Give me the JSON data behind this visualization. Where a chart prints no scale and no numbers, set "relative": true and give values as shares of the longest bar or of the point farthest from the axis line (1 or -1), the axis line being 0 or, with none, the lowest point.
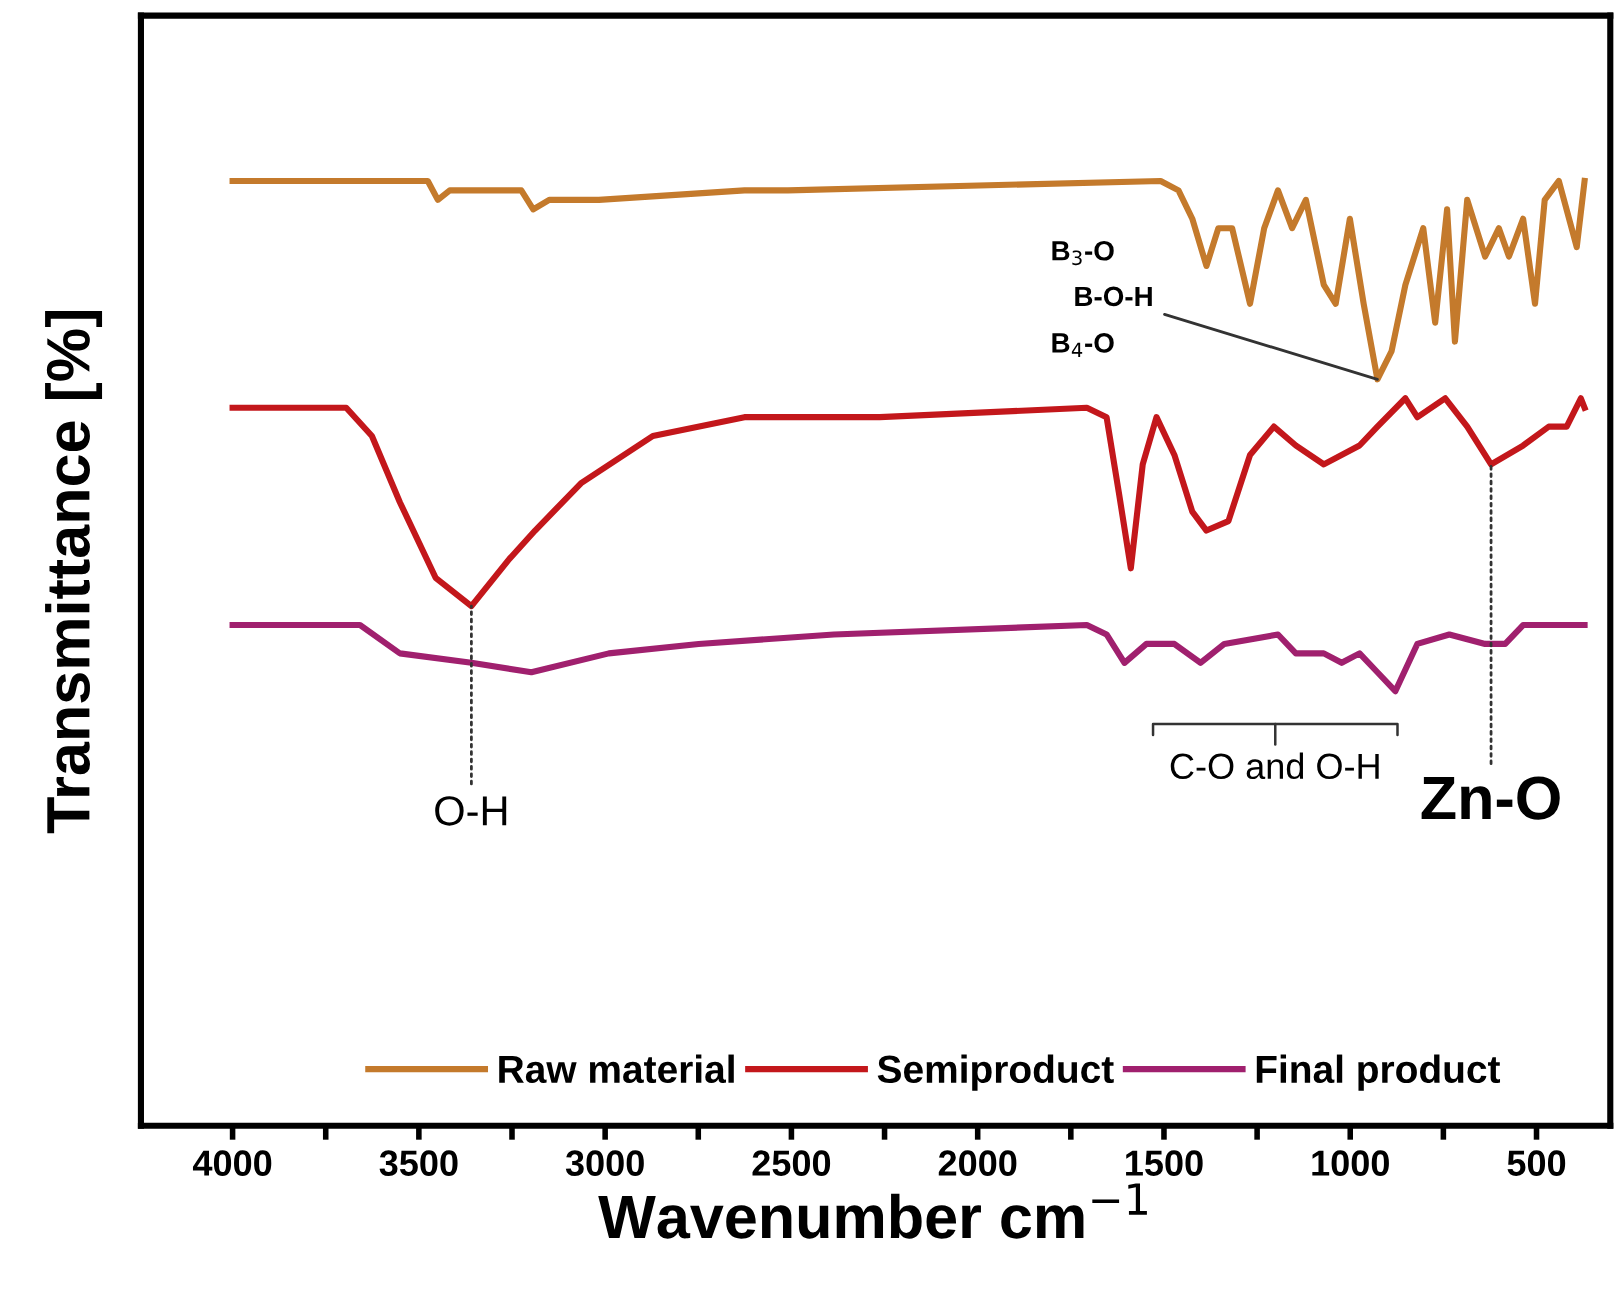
{
  "chart_data": {
    "type": "line",
    "relative": true,
    "xlabel": "Wavenumber cm$^{−1}$",
    "ylabel": "Transmittance [%]",
    "xlim": [
      4246,
      302
    ],
    "xticks": [
      4000,
      {
        "value": 3750,
        "label": null
      },
      3500,
      {
        "value": 3250,
        "label": null
      },
      3000,
      {
        "value": 2750,
        "label": null
      },
      2500,
      {
        "value": 2250,
        "label": null
      },
      2000,
      {
        "value": 1750,
        "label": null
      },
      1500,
      {
        "value": 1250,
        "label": null
      },
      1000,
      {
        "value": 750,
        "label": null
      },
      500
    ],
    "legend": "bottom",
    "grid": false,
    "marker": "none",
    "line_style": "solid",
    "series": [
      {
        "name": "Raw material",
        "color": "#c47a2c",
        "x": [
          4000,
          3476,
          3449,
          3417,
          3225,
          3193,
          3150,
          3017,
          2626,
          2509,
          1509,
          1461,
          1424,
          1386,
          1354,
          1317,
          1269,
          1231,
          1194,
          1156,
          1119,
          1071,
          1039,
          1001,
          964,
          927,
          889,
          852,
          804,
          772,
          740,
          719,
          686,
          638,
          601,
          574,
          536,
          504,
          478,
          440,
          392,
          371
        ],
        "values": [
          1.0,
          1.0,
          0.98,
          0.99,
          0.99,
          0.97,
          0.98,
          0.98,
          0.99,
          0.99,
          1.0,
          0.99,
          0.96,
          0.91,
          0.95,
          0.95,
          0.87,
          0.95,
          0.99,
          0.95,
          0.98,
          0.89,
          0.87,
          0.96,
          0.87,
          0.79,
          0.82,
          0.89,
          0.95,
          0.85,
          0.97,
          0.83,
          0.98,
          0.92,
          0.95,
          0.92,
          0.96,
          0.87,
          0.98,
          1.0,
          0.93,
          1.0
        ]
      },
      {
        "name": "Semiproduct",
        "color": "#c3171b",
        "x": [
          4000,
          3695,
          3626,
          3551,
          3455,
          3359,
          3257,
          3188,
          3065,
          2872,
          2626,
          2263,
          1707,
          1654,
          1621,
          1589,
          1557,
          1520,
          1472,
          1424,
          1386,
          1327,
          1269,
          1205,
          1146,
          1071,
          975,
          927,
          852,
          820,
          745,
          686,
          622,
          536,
          467,
          419,
          381,
          371
        ],
        "values": [
          0.76,
          0.76,
          0.73,
          0.66,
          0.58,
          0.55,
          0.6,
          0.63,
          0.68,
          0.73,
          0.75,
          0.75,
          0.76,
          0.75,
          0.67,
          0.59,
          0.7,
          0.75,
          0.71,
          0.65,
          0.63,
          0.64,
          0.71,
          0.74,
          0.72,
          0.7,
          0.72,
          0.74,
          0.77,
          0.75,
          0.77,
          0.74,
          0.7,
          0.72,
          0.74,
          0.74,
          0.77,
          0.76
        ]
      },
      {
        "name": "Final product",
        "color": "#a0206e",
        "x": [
          4000,
          3658,
          3551,
          3359,
          3198,
          2990,
          2749,
          2386,
          1707,
          1654,
          1606,
          1547,
          1472,
          1402,
          1338,
          1194,
          1146,
          1071,
          1023,
          975,
          927,
          879,
          820,
          734,
          638,
          584,
          536,
          371
        ],
        "values": [
          0.53,
          0.53,
          0.5,
          0.49,
          0.48,
          0.5,
          0.51,
          0.52,
          0.53,
          0.52,
          0.49,
          0.51,
          0.51,
          0.49,
          0.51,
          0.52,
          0.5,
          0.5,
          0.49,
          0.5,
          0.48,
          0.46,
          0.51,
          0.52,
          0.51,
          0.51,
          0.53,
          0.53
        ]
      }
    ],
    "annotations": [
      {
        "text": "O-H",
        "x": 3359,
        "y": 0.55
      },
      {
        "text": "Zn-O",
        "x": 622,
        "y": 0.7
      },
      "C-O and O-H",
      "B$_{3}$-O",
      {
        "text": "B-O-H",
        "x": 927,
        "y": 0.79
      },
      "B$_{4}$-O"
    ]
  }
}
